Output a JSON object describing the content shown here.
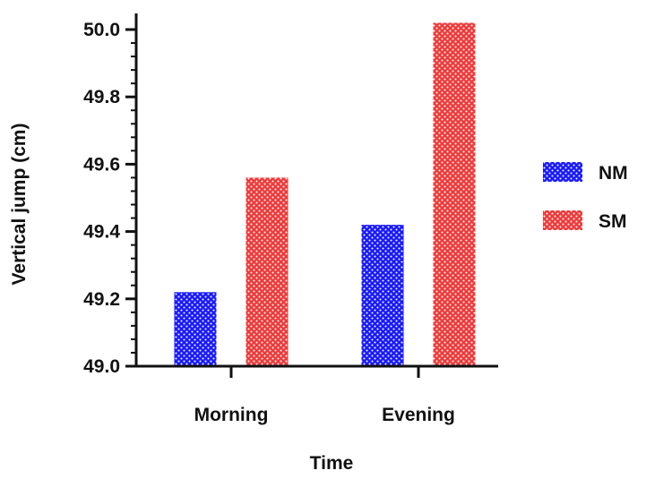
{
  "chart_data": {
    "type": "bar",
    "categories": [
      "Morning",
      "Evening"
    ],
    "series": [
      {
        "name": "NM",
        "values": [
          49.22,
          49.42
        ],
        "color": "#1a1aff"
      },
      {
        "name": "SM",
        "values": [
          49.56,
          50.02
        ],
        "color": "#ee3b3b"
      }
    ],
    "title": "",
    "xlabel": "Time",
    "ylabel": "Vertical jump (cm)",
    "ylim": [
      49.0,
      50.0
    ],
    "yticks": [
      "49.0",
      "49.2",
      "49.4",
      "49.6",
      "49.8",
      "50.0"
    ],
    "pattern": "dotted",
    "grid": false,
    "legend_position": "right"
  }
}
